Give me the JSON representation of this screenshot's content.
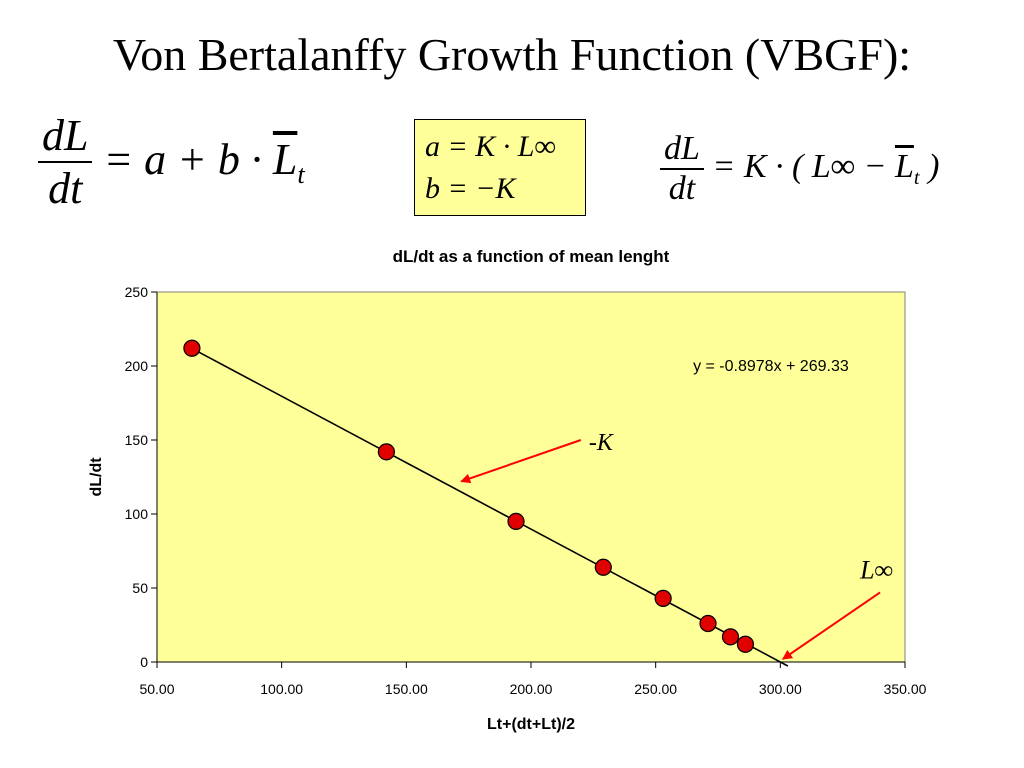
{
  "slide_title": "Von Bertalanffy Growth Function (VBGF):",
  "formula_left": {
    "num": "dL",
    "den": "dt",
    "rhs_pre": " = a + b · ",
    "rhs_var": "L",
    "rhs_sub": "t"
  },
  "formula_box": {
    "line1": "a = K · L∞",
    "line2": "b = −K"
  },
  "formula_right": {
    "num": "dL",
    "den": "dt",
    "rhs_pre": " = K · ( L∞ − ",
    "rhs_var": "L",
    "rhs_sub": "t",
    "rhs_post": " )"
  },
  "chart_data": {
    "type": "scatter",
    "title": "dL/dt as a function of mean lenght",
    "xlabel": "Lt+(dt+Lt)/2",
    "ylabel": "dL/dt",
    "xlim": [
      50,
      350
    ],
    "ylim": [
      0,
      250
    ],
    "xticks": [
      "50.00",
      "100.00",
      "150.00",
      "200.00",
      "250.00",
      "300.00",
      "350.00"
    ],
    "yticks": [
      "0",
      "50",
      "100",
      "150",
      "200",
      "250"
    ],
    "x": [
      64,
      142,
      194,
      229,
      253,
      271,
      280,
      286
    ],
    "y": [
      212,
      142,
      95,
      64,
      43,
      26,
      17,
      12
    ],
    "trendline": {
      "slope": -0.8978,
      "intercept": 269.33,
      "x_start": 64,
      "x_end": 300,
      "label": "y = -0.8978x + 269.33"
    },
    "annotations": [
      {
        "text": "-K",
        "arrow_from": [
          220,
          150
        ],
        "arrow_to": [
          172,
          122
        ]
      },
      {
        "text": "L∞",
        "arrow_from": [
          340,
          47
        ],
        "arrow_to": [
          301,
          2
        ]
      }
    ],
    "plot_bg": "#ffff99",
    "marker_color": "#e00000",
    "arrow_color": "#ff0000"
  }
}
